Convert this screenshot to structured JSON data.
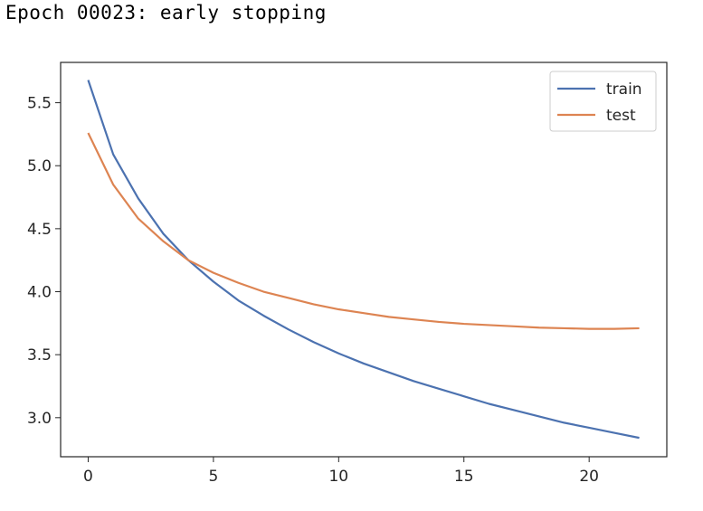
{
  "console": {
    "text": "Epoch 00023: early stopping"
  },
  "chart_data": {
    "type": "line",
    "title": "",
    "xlabel": "",
    "ylabel": "",
    "xlim": [
      -1.1,
      23.1
    ],
    "ylim": [
      2.69,
      5.82
    ],
    "xticks": [
      0,
      5,
      10,
      15,
      20
    ],
    "yticks": [
      3.0,
      3.5,
      4.0,
      4.5,
      5.0,
      5.5
    ],
    "x": [
      0,
      1,
      2,
      3,
      4,
      5,
      6,
      7,
      8,
      9,
      10,
      11,
      12,
      13,
      14,
      15,
      16,
      17,
      18,
      19,
      20,
      21,
      22
    ],
    "series": [
      {
        "name": "train",
        "color": "#4c72b0",
        "values": [
          5.68,
          5.09,
          4.74,
          4.46,
          4.25,
          4.08,
          3.93,
          3.81,
          3.7,
          3.6,
          3.51,
          3.43,
          3.36,
          3.29,
          3.23,
          3.17,
          3.11,
          3.06,
          3.01,
          2.96,
          2.92,
          2.88,
          2.84
        ]
      },
      {
        "name": "test",
        "color": "#dd8452",
        "values": [
          5.26,
          4.85,
          4.58,
          4.4,
          4.25,
          4.15,
          4.07,
          4.0,
          3.95,
          3.9,
          3.86,
          3.83,
          3.8,
          3.78,
          3.76,
          3.745,
          3.735,
          3.725,
          3.715,
          3.71,
          3.705,
          3.705,
          3.71
        ]
      }
    ],
    "legend_position": "top-right",
    "grid": false
  }
}
